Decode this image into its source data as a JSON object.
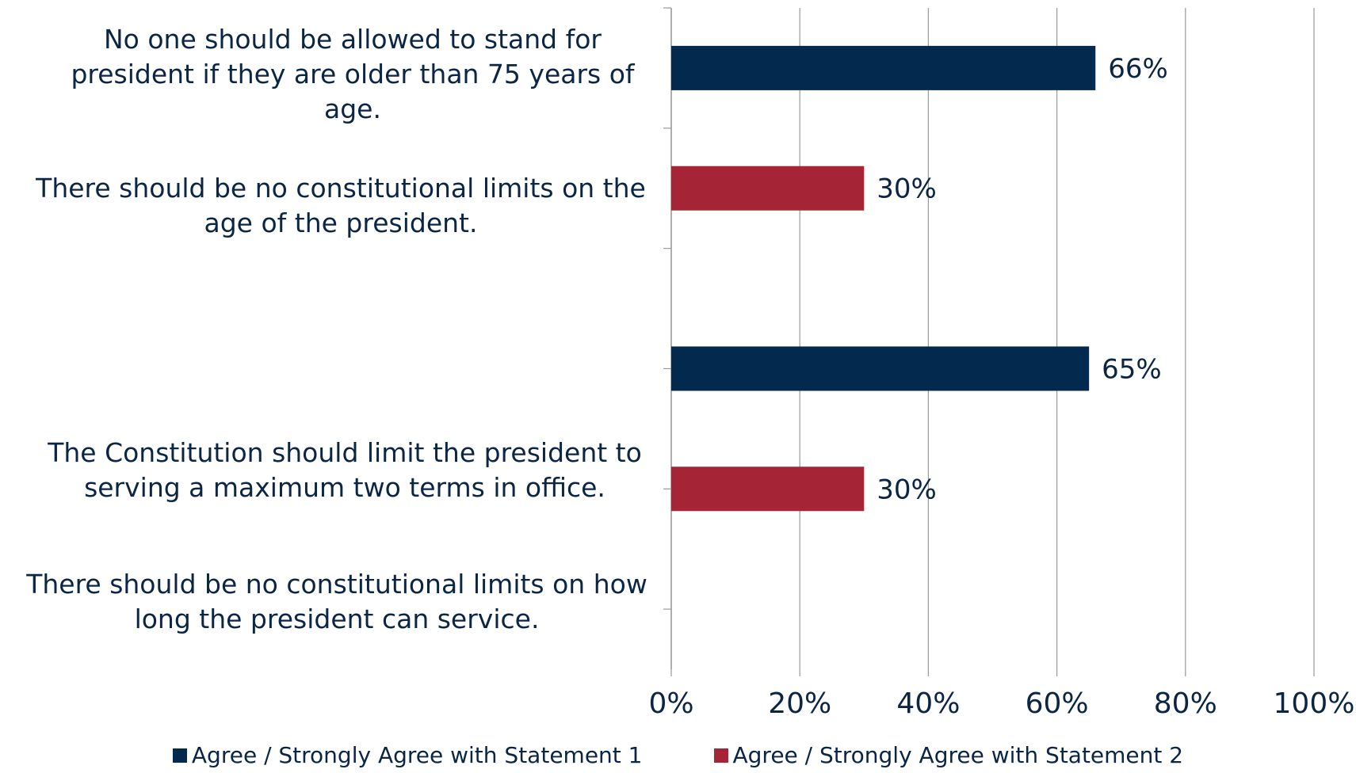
{
  "chart_data": {
    "type": "bar",
    "orientation": "horizontal",
    "title": "",
    "xlabel": "",
    "ylabel": "",
    "xlim": [
      0,
      100
    ],
    "x_ticks": [
      "0%",
      "20%",
      "40%",
      "60%",
      "80%",
      "100%"
    ],
    "grid": "vertical",
    "legend_position": "bottom",
    "categories": [
      "No one should be allowed to stand for president if they are older than 75 years of age.",
      "There should be no constitutional limits on the age of the president.",
      "The Constitution should limit the president to serving a maximum two terms in office.",
      "There should be no constitutional limits on how long the president can service."
    ],
    "values": [
      66,
      30,
      65,
      30
    ],
    "value_labels": [
      "66%",
      "30%",
      "65%",
      "30%"
    ],
    "bar_series": [
      0,
      1,
      0,
      1
    ],
    "series": [
      {
        "name": "Agree / Strongly Agree with Statement 1",
        "color": "#04294e"
      },
      {
        "name": "Agree / Strongly Agree with Statement 2",
        "color": "#a52436"
      }
    ]
  }
}
